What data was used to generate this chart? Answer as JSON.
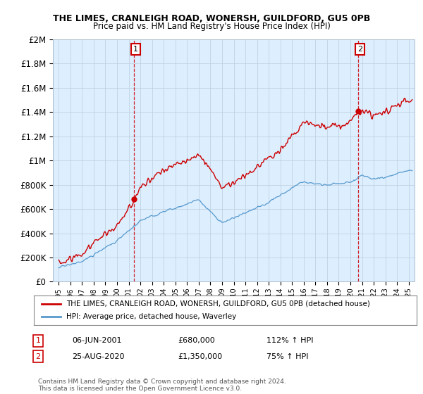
{
  "title": "THE LIMES, CRANLEIGH ROAD, WONERSH, GUILDFORD, GU5 0PB",
  "subtitle": "Price paid vs. HM Land Registry's House Price Index (HPI)",
  "ylabel_ticks": [
    "£0",
    "£200K",
    "£400K",
    "£600K",
    "£800K",
    "£1M",
    "£1.2M",
    "£1.4M",
    "£1.6M",
    "£1.8M",
    "£2M"
  ],
  "ytick_vals": [
    0,
    200000,
    400000,
    600000,
    800000,
    1000000,
    1200000,
    1400000,
    1600000,
    1800000,
    2000000
  ],
  "ylim": [
    0,
    2000000
  ],
  "sale1_year": 2001.44,
  "sale1_price": 680000,
  "sale2_year": 2020.65,
  "sale2_price": 1350000,
  "legend_line1": "THE LIMES, CRANLEIGH ROAD, WONERSH, GUILDFORD, GU5 0PB (detached house)",
  "legend_line2": "HPI: Average price, detached house, Waverley",
  "table_row1_num": "1",
  "table_row1_date": "06-JUN-2001",
  "table_row1_price": "£680,000",
  "table_row1_hpi": "112% ↑ HPI",
  "table_row2_num": "2",
  "table_row2_date": "25-AUG-2020",
  "table_row2_price": "£1,350,000",
  "table_row2_hpi": "75% ↑ HPI",
  "footer": "Contains HM Land Registry data © Crown copyright and database right 2024.\nThis data is licensed under the Open Government Licence v3.0.",
  "red_line_color": "#cc0000",
  "blue_line_color": "#5599cc",
  "plot_bg_color": "#ddeeff",
  "fig_bg_color": "#ffffff",
  "grid_color": "#bbccdd",
  "annotation_box_color": "#cc0000"
}
